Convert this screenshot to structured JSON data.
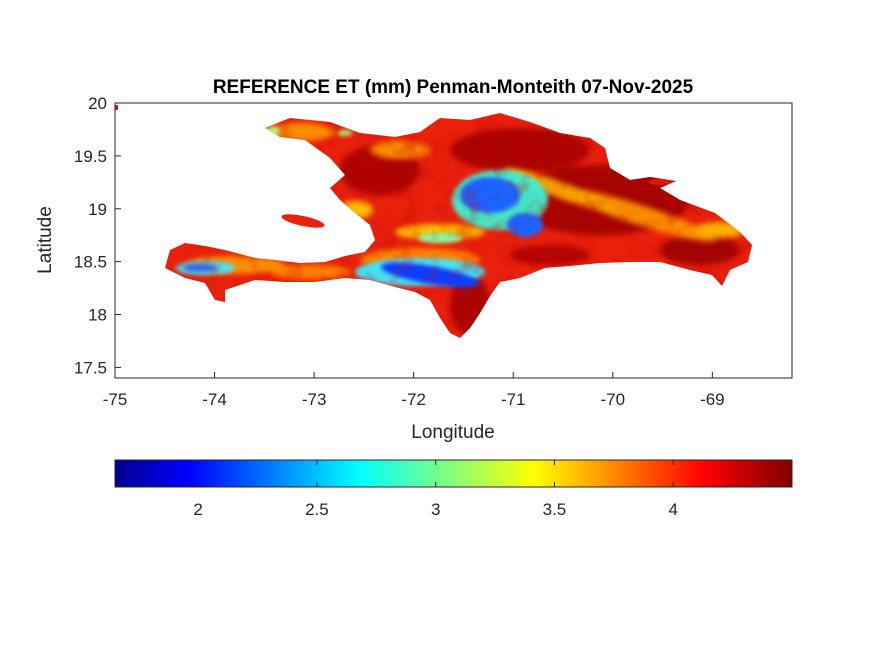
{
  "map": {
    "title": "REFERENCE ET (mm) Penman-Monteith 07-Nov-2025",
    "xlabel": "Longitude",
    "ylabel": "Latitude",
    "x_ticks": [
      "-75",
      "-74",
      "-73",
      "-72",
      "-71",
      "-70",
      "-69"
    ],
    "y_ticks": [
      "20",
      "19.5",
      "19",
      "18.5",
      "18",
      "17.5"
    ],
    "xlim": [
      -75,
      -68.2
    ],
    "ylim": [
      17.4,
      20
    ],
    "colormap": "jet",
    "colors": {
      "ocean": "#ffffff",
      "land_base": "#e8200c",
      "dark_red": "#8b0000",
      "orange": "#ff8c00",
      "yellow": "#ffe600",
      "cyan": "#27e8ff",
      "blue": "#0a3cff"
    }
  },
  "colorbar": {
    "range": [
      1.65,
      4.5
    ],
    "ticks": [
      "2",
      "2.5",
      "3",
      "3.5",
      "4"
    ],
    "tick_values": [
      2,
      2.5,
      3,
      3.5,
      4
    ]
  }
}
